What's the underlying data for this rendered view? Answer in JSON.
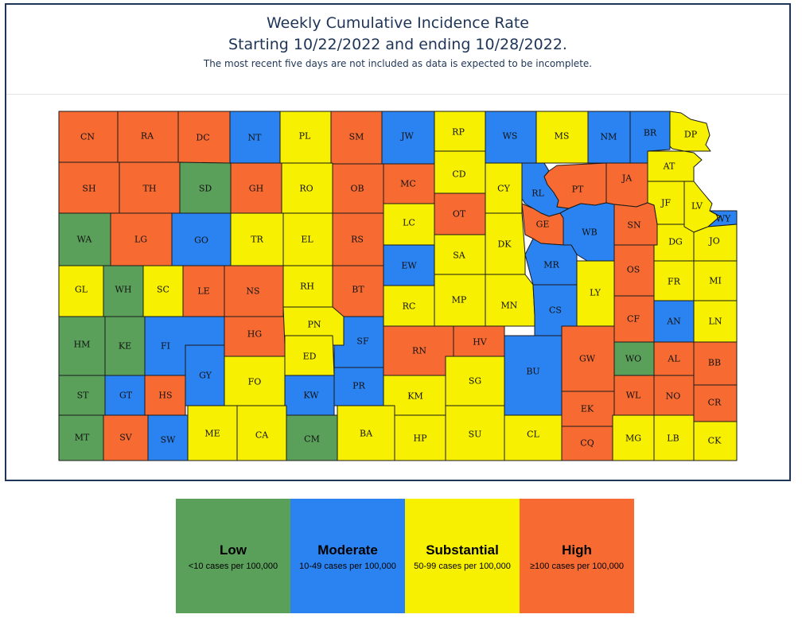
{
  "title_line1": "Weekly Cumulative Incidence Rate",
  "title_line2": "Starting 10/22/2022 and ending 10/28/2022.",
  "subtitle": "The most recent five days are not included as data is expected to be incomplete.",
  "colors": {
    "low": "#5aa05b",
    "moderate": "#2a83f0",
    "substantial": "#f7f000",
    "high": "#f76b32"
  },
  "legend": [
    {
      "level": "low",
      "label": "Low",
      "range": "<10 cases per 100,000",
      "color": "#5aa05b"
    },
    {
      "level": "moderate",
      "label": "Moderate",
      "range": "10-49 cases per 100,000",
      "color": "#2a83f0"
    },
    {
      "level": "substantial",
      "label": "Substantial",
      "range": "50-99 cases per 100,000",
      "color": "#f7f000"
    },
    {
      "level": "high",
      "label": "High",
      "range": "≥100 cases per 100,000",
      "color": "#f76b32"
    }
  ],
  "counties": [
    {
      "code": "CN",
      "level": "high"
    },
    {
      "code": "RA",
      "level": "high"
    },
    {
      "code": "DC",
      "level": "high"
    },
    {
      "code": "NT",
      "level": "moderate"
    },
    {
      "code": "PL",
      "level": "substantial"
    },
    {
      "code": "SM",
      "level": "high"
    },
    {
      "code": "JW",
      "level": "moderate"
    },
    {
      "code": "RP",
      "level": "substantial"
    },
    {
      "code": "WS",
      "level": "moderate"
    },
    {
      "code": "MS",
      "level": "substantial"
    },
    {
      "code": "NM",
      "level": "moderate"
    },
    {
      "code": "BR",
      "level": "moderate"
    },
    {
      "code": "DP",
      "level": "substantial"
    },
    {
      "code": "SH",
      "level": "high"
    },
    {
      "code": "TH",
      "level": "high"
    },
    {
      "code": "SD",
      "level": "low"
    },
    {
      "code": "GH",
      "level": "high"
    },
    {
      "code": "RO",
      "level": "substantial"
    },
    {
      "code": "OB",
      "level": "high"
    },
    {
      "code": "MC",
      "level": "high"
    },
    {
      "code": "CD",
      "level": "substantial"
    },
    {
      "code": "CY",
      "level": "substantial"
    },
    {
      "code": "RL",
      "level": "moderate"
    },
    {
      "code": "PT",
      "level": "high"
    },
    {
      "code": "JA",
      "level": "high"
    },
    {
      "code": "AT",
      "level": "substantial"
    },
    {
      "code": "JF",
      "level": "substantial"
    },
    {
      "code": "LV",
      "level": "substantial"
    },
    {
      "code": "WY",
      "level": "moderate"
    },
    {
      "code": "WA",
      "level": "low"
    },
    {
      "code": "LG",
      "level": "high"
    },
    {
      "code": "GO",
      "level": "moderate"
    },
    {
      "code": "TR",
      "level": "substantial"
    },
    {
      "code": "EL",
      "level": "substantial"
    },
    {
      "code": "RS",
      "level": "high"
    },
    {
      "code": "LC",
      "level": "substantial"
    },
    {
      "code": "OT",
      "level": "high"
    },
    {
      "code": "SA",
      "level": "substantial"
    },
    {
      "code": "DK",
      "level": "substantial"
    },
    {
      "code": "GE",
      "level": "high"
    },
    {
      "code": "WB",
      "level": "moderate"
    },
    {
      "code": "SN",
      "level": "high"
    },
    {
      "code": "DG",
      "level": "substantial"
    },
    {
      "code": "JO",
      "level": "substantial"
    },
    {
      "code": "GL",
      "level": "substantial"
    },
    {
      "code": "WH",
      "level": "low"
    },
    {
      "code": "SC",
      "level": "substantial"
    },
    {
      "code": "LE",
      "level": "high"
    },
    {
      "code": "NS",
      "level": "high"
    },
    {
      "code": "RH",
      "level": "substantial"
    },
    {
      "code": "BT",
      "level": "high"
    },
    {
      "code": "EW",
      "level": "moderate"
    },
    {
      "code": "RC",
      "level": "substantial"
    },
    {
      "code": "MP",
      "level": "substantial"
    },
    {
      "code": "MN",
      "level": "substantial"
    },
    {
      "code": "MR",
      "level": "moderate"
    },
    {
      "code": "CS",
      "level": "moderate"
    },
    {
      "code": "LY",
      "level": "substantial"
    },
    {
      "code": "OS",
      "level": "high"
    },
    {
      "code": "FR",
      "level": "substantial"
    },
    {
      "code": "MI",
      "level": "substantial"
    },
    {
      "code": "HM",
      "level": "low"
    },
    {
      "code": "KE",
      "level": "low"
    },
    {
      "code": "FI",
      "level": "moderate"
    },
    {
      "code": "GY",
      "level": "moderate"
    },
    {
      "code": "HG",
      "level": "high"
    },
    {
      "code": "PN",
      "level": "substantial"
    },
    {
      "code": "ED",
      "level": "substantial"
    },
    {
      "code": "SF",
      "level": "moderate"
    },
    {
      "code": "RN",
      "level": "high"
    },
    {
      "code": "HV",
      "level": "high"
    },
    {
      "code": "BU",
      "level": "moderate"
    },
    {
      "code": "GW",
      "level": "high"
    },
    {
      "code": "CF",
      "level": "high"
    },
    {
      "code": "AN",
      "level": "moderate"
    },
    {
      "code": "LN",
      "level": "substantial"
    },
    {
      "code": "WO",
      "level": "low"
    },
    {
      "code": "AL",
      "level": "high"
    },
    {
      "code": "BB",
      "level": "high"
    },
    {
      "code": "ST",
      "level": "low"
    },
    {
      "code": "GT",
      "level": "moderate"
    },
    {
      "code": "HS",
      "level": "high"
    },
    {
      "code": "FO",
      "level": "substantial"
    },
    {
      "code": "KW",
      "level": "moderate"
    },
    {
      "code": "PR",
      "level": "moderate"
    },
    {
      "code": "KM",
      "level": "substantial"
    },
    {
      "code": "SG",
      "level": "substantial"
    },
    {
      "code": "EK",
      "level": "high"
    },
    {
      "code": "WL",
      "level": "high"
    },
    {
      "code": "NO",
      "level": "high"
    },
    {
      "code": "CR",
      "level": "high"
    },
    {
      "code": "MT",
      "level": "low"
    },
    {
      "code": "SV",
      "level": "high"
    },
    {
      "code": "SW",
      "level": "moderate"
    },
    {
      "code": "ME",
      "level": "substantial"
    },
    {
      "code": "CA",
      "level": "substantial"
    },
    {
      "code": "CM",
      "level": "low"
    },
    {
      "code": "BA",
      "level": "substantial"
    },
    {
      "code": "HP",
      "level": "substantial"
    },
    {
      "code": "SU",
      "level": "substantial"
    },
    {
      "code": "CL",
      "level": "substantial"
    },
    {
      "code": "CQ",
      "level": "high"
    },
    {
      "code": "MG",
      "level": "substantial"
    },
    {
      "code": "LB",
      "level": "substantial"
    },
    {
      "code": "CK",
      "level": "substantial"
    }
  ]
}
